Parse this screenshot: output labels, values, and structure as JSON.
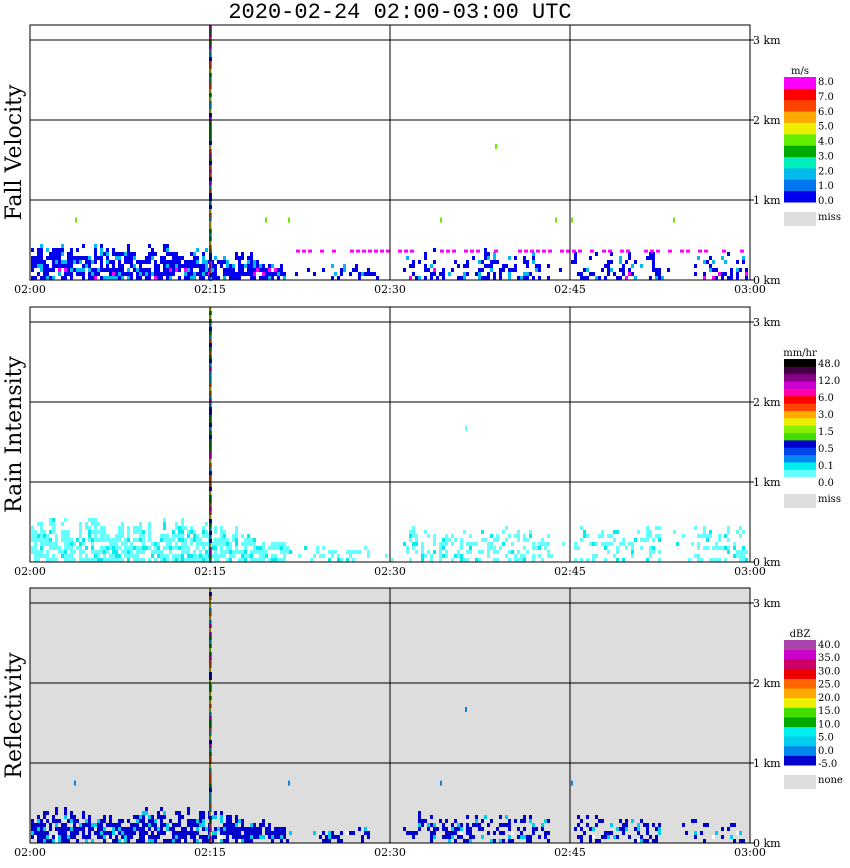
{
  "title": "2020-02-24   02:00-03:00 UTC",
  "chart_data": [
    {
      "type": "heatmap",
      "name": "fall-velocity",
      "ylabel": "Fall Velocity",
      "x_ticks": [
        "02:00",
        "02:15",
        "02:30",
        "02:45",
        "03:00"
      ],
      "y_ticks": [
        "0 km",
        "1 km",
        "2 km",
        "3 km"
      ],
      "ylim_km": [
        0,
        3.1
      ],
      "colorbar": {
        "unit": "m/s",
        "colors": [
          "#0000ee",
          "#0077ee",
          "#00bbee",
          "#00eebb",
          "#00aa00",
          "#66ee00",
          "#eeee00",
          "#ffaa00",
          "#ff4400",
          "#ff0000",
          "#ff00ff"
        ],
        "labels": [
          "0.0",
          "1.0",
          "2.0",
          "3.0",
          "4.0",
          "5.0",
          "6.0",
          "7.0",
          "8.0"
        ],
        "miss_label": "miss",
        "miss_color": "#dddddd"
      },
      "background": "#ffffff",
      "echo_max_km": 0.45,
      "spike_time_fraction": 0.25,
      "dominant_color": "#0000ee",
      "accent_colors": [
        "#00bbee",
        "#ff00ff"
      ]
    },
    {
      "type": "heatmap",
      "name": "rain-intensity",
      "ylabel": "Rain Intensity",
      "x_ticks": [
        "02:00",
        "02:15",
        "02:30",
        "02:45",
        "03:00"
      ],
      "y_ticks": [
        "0 km",
        "1 km",
        "2 km",
        "3 km"
      ],
      "ylim_km": [
        0,
        3.1
      ],
      "colorbar": {
        "unit": "mm/hr",
        "colors": [
          "#ffffff",
          "#66ffff",
          "#00eeee",
          "#0088ee",
          "#0044ee",
          "#0000cc",
          "#44dd00",
          "#88ee00",
          "#eeee00",
          "#ffaa00",
          "#ff4400",
          "#ff0000",
          "#ff00aa",
          "#cc00cc",
          "#880088",
          "#440044",
          "#000000"
        ],
        "labels": [
          "0.0",
          "0.1",
          "0.5",
          "1.5",
          "3.0",
          "6.0",
          "12.0",
          "48.0"
        ],
        "miss_label": "miss",
        "miss_color": "#dddddd"
      },
      "background": "#ffffff",
      "echo_max_km": 0.55,
      "spike_time_fraction": 0.25,
      "dominant_color": "#66ffff",
      "accent_colors": [
        "#00eeee"
      ]
    },
    {
      "type": "heatmap",
      "name": "reflectivity",
      "ylabel": "Reflectivity",
      "x_ticks": [
        "02:00",
        "02:15",
        "02:30",
        "02:45",
        "03:00"
      ],
      "y_ticks": [
        "0 km",
        "1 km",
        "2 km",
        "3 km"
      ],
      "ylim_km": [
        0,
        3.1
      ],
      "colorbar": {
        "unit": "dBZ",
        "colors": [
          "#0000cc",
          "#0088ee",
          "#00ccee",
          "#00eeee",
          "#00aa00",
          "#44dd00",
          "#eeee00",
          "#ffaa00",
          "#ff6600",
          "#ee0000",
          "#cc0066",
          "#cc00cc",
          "#aa44aa"
        ],
        "labels": [
          "-5.0",
          "0.0",
          "5.0",
          "10.0",
          "15.0",
          "20.0",
          "25.0",
          "30.0",
          "35.0",
          "40.0"
        ],
        "miss_label": "none",
        "miss_color": "#dddddd"
      },
      "background": "#dddddd",
      "echo_max_km": 0.45,
      "spike_time_fraction": 0.25,
      "dominant_color": "#0000cc",
      "accent_colors": [
        "#00ccee",
        "#ffffff"
      ]
    }
  ]
}
